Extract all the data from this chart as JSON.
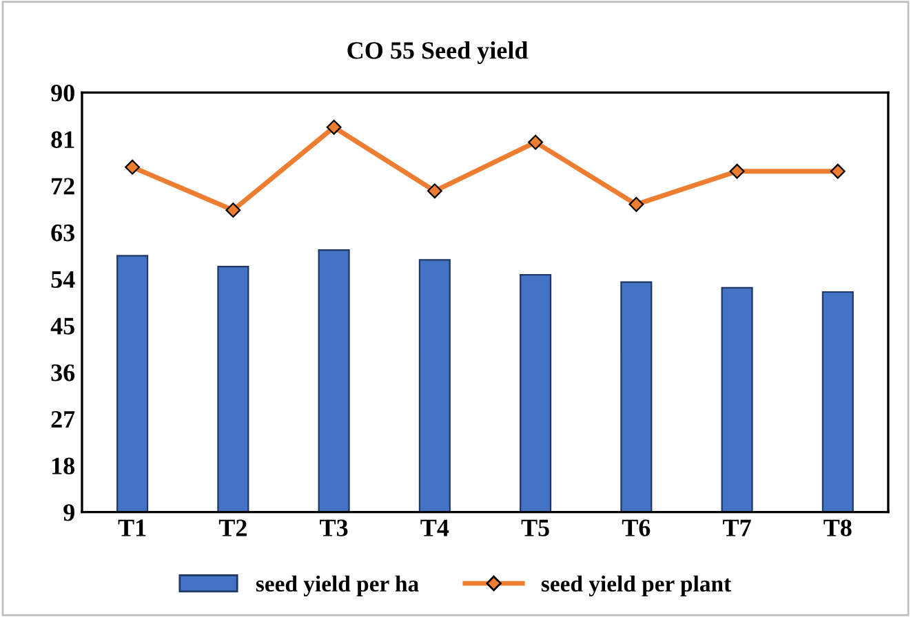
{
  "chart_data": {
    "type": "bar",
    "title": "CO 55 Seed yield",
    "categories": [
      "T1",
      "T2",
      "T3",
      "T4",
      "T5",
      "T6",
      "T7",
      "T8"
    ],
    "series": [
      {
        "name": "seed yield per ha",
        "color": "#4472c4",
        "values": [
          58.5,
          56.4,
          59.6,
          57.7,
          54.8,
          53.4,
          52.3,
          51.5
        ]
      },
      {
        "name": "seed yield per plant",
        "type": "line",
        "color": "#ed7d31",
        "marker": "diamond",
        "values": [
          75.6,
          67.3,
          83.3,
          71.0,
          80.4,
          68.4,
          74.8,
          74.8
        ]
      }
    ],
    "ylim": [
      9,
      90
    ],
    "yticks": [
      9,
      18,
      27,
      36,
      45,
      54,
      63,
      72,
      81,
      90
    ],
    "grid": false,
    "legend": "bottom"
  }
}
